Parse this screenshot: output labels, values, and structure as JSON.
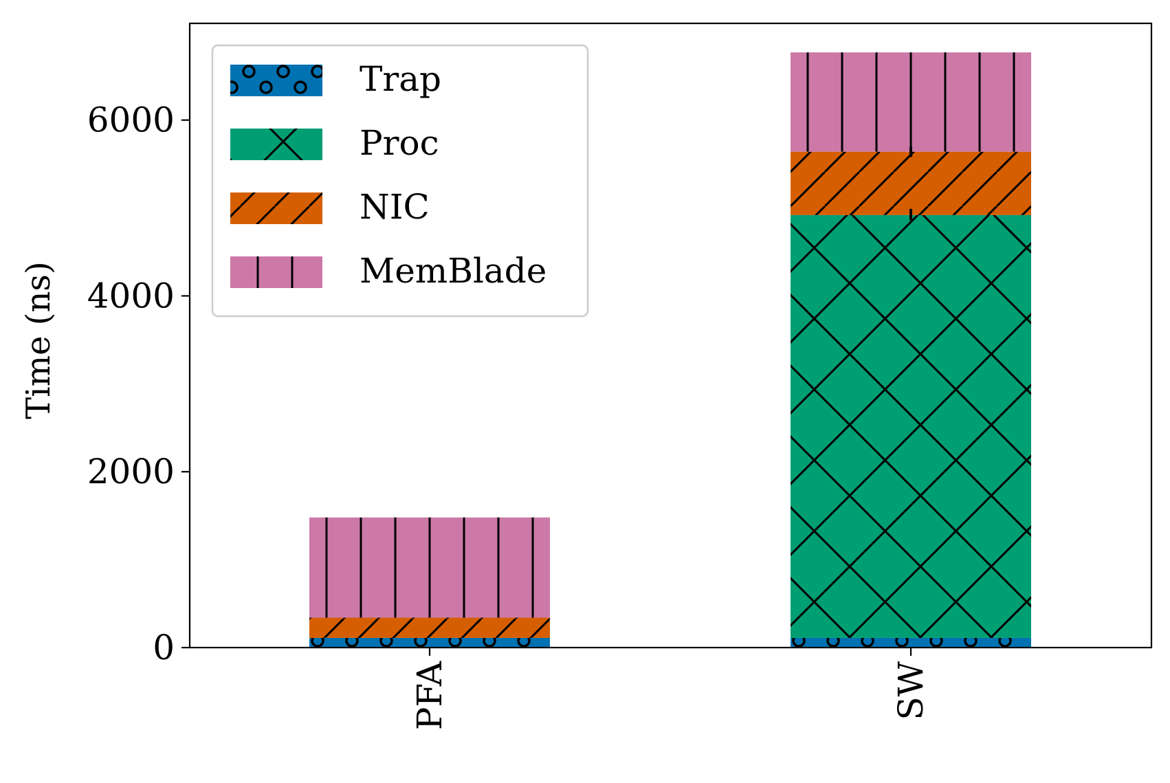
{
  "chart_data": {
    "type": "bar",
    "stacked": true,
    "title": "",
    "xlabel": "",
    "ylabel": "Time (ns)",
    "categories": [
      "PFA",
      "SW"
    ],
    "ylim": [
      0,
      7100
    ],
    "yticks": [
      0,
      2000,
      4000,
      6000
    ],
    "grid": false,
    "legend_position": "top-left",
    "series": [
      {
        "name": "Trap",
        "values": [
          110,
          110
        ],
        "color": "#0072b2",
        "hatch": "circles"
      },
      {
        "name": "Proc",
        "values": [
          0,
          4810
        ],
        "color": "#009e73",
        "hatch": "cross"
      },
      {
        "name": "NIC",
        "values": [
          230,
          720
        ],
        "color": "#d55e00",
        "hatch": "diagonal"
      },
      {
        "name": "MemBlade",
        "values": [
          1140,
          1130
        ],
        "color": "#cc79a7",
        "hatch": "vertical"
      }
    ],
    "error_bars": [
      {
        "category": "SW",
        "at": 4920,
        "low": 4860,
        "high": 4990
      },
      {
        "category": "SW",
        "at": 5640,
        "low": 5580,
        "high": 5700
      }
    ]
  }
}
